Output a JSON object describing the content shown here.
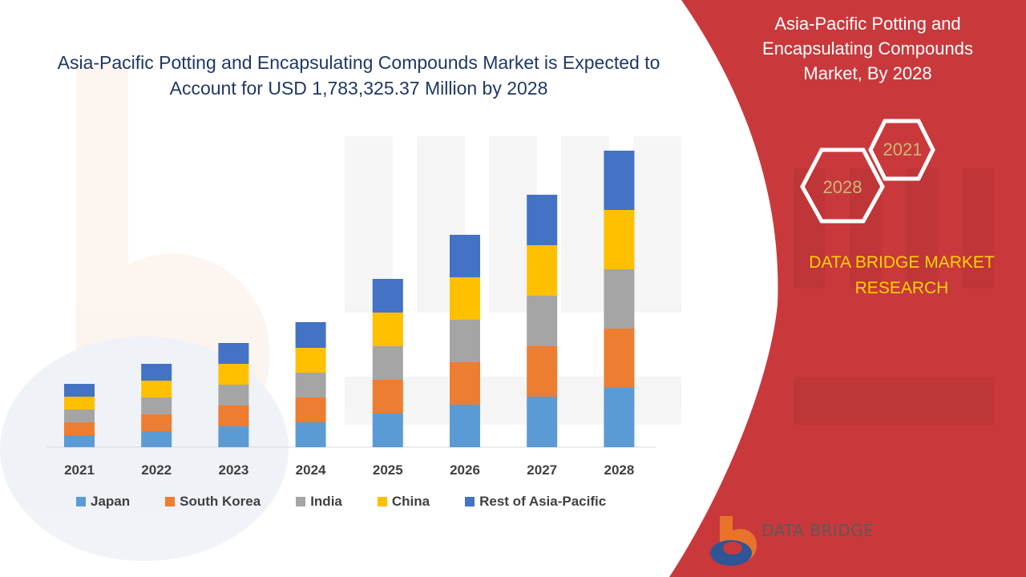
{
  "chart_data": {
    "type": "bar",
    "stacked": true,
    "title": "Asia-Pacific Potting and Encapsulating Compounds Market is Expected to Account for USD 1,783,325.37 Million by 2028",
    "categories": [
      "2021",
      "2022",
      "2023",
      "2024",
      "2025",
      "2026",
      "2027",
      "2028"
    ],
    "series": [
      {
        "name": "Japan",
        "color": "#5b9bd5",
        "values": [
          15,
          20,
          26,
          31,
          42,
          53,
          63,
          74
        ]
      },
      {
        "name": "South Korea",
        "color": "#ed7d31",
        "values": [
          16,
          21,
          26,
          31,
          42,
          53,
          63,
          74
        ]
      },
      {
        "name": "India",
        "color": "#a5a5a5",
        "values": [
          16,
          21,
          26,
          31,
          42,
          53,
          63,
          74
        ]
      },
      {
        "name": "China",
        "color": "#ffc000",
        "values": [
          16,
          21,
          26,
          31,
          42,
          53,
          63,
          74
        ]
      },
      {
        "name": "Rest of Asia-Pacific",
        "color": "#4472c4",
        "values": [
          16,
          21,
          26,
          32,
          42,
          53,
          63,
          74
        ]
      }
    ],
    "ylim": [
      0,
      400
    ],
    "grid": false,
    "legend_position": "bottom"
  },
  "side_panel": {
    "title": "Asia-Pacific Potting and Encapsulating Compounds Market, By 2028",
    "hex_year_back": "2021",
    "hex_year_front": "2028",
    "brand_text": "DATA BRIDGE MARKET RESEARCH",
    "panel_color": "#c9393c",
    "hex_text_color": "#c8b87a"
  },
  "logo": {
    "label": "DATA BRIDGE"
  }
}
